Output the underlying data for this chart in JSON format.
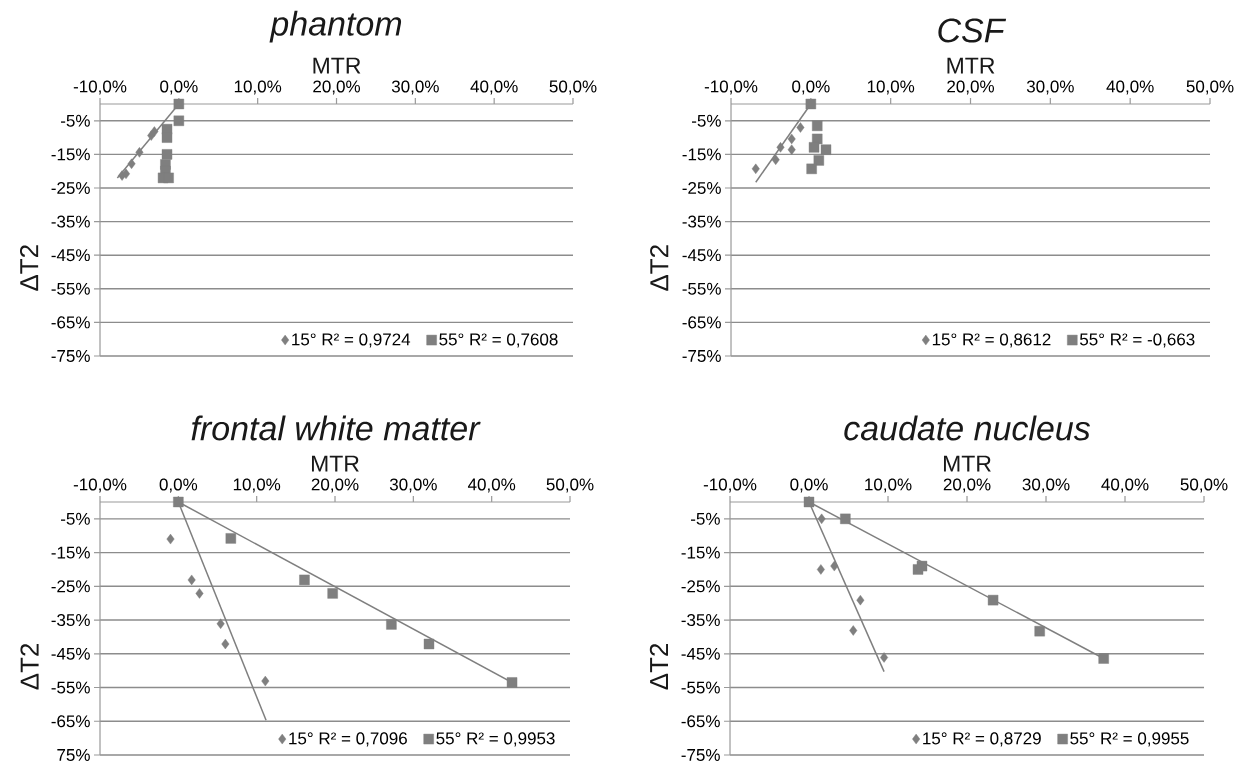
{
  "chart_data": [
    {
      "type": "scatter",
      "title": "phantom",
      "xlabel": "MTR",
      "ylabel": "ΔT2",
      "grid": "y",
      "legend": "bottom right",
      "xlim": [
        -10,
        50
      ],
      "ylim": [
        -75,
        0
      ],
      "xticks": [
        {
          "value": -10,
          "label": "-10,0%"
        },
        {
          "value": 0,
          "label": "0,0%"
        },
        {
          "value": 10,
          "label": "10,0%"
        },
        {
          "value": 20,
          "label": "20,0%"
        },
        {
          "value": 30,
          "label": "30,0%"
        },
        {
          "value": 40,
          "label": "40,0%"
        },
        {
          "value": 50,
          "label": "50,0%"
        }
      ],
      "yticks": [
        {
          "value": -5,
          "label": "-5%"
        },
        {
          "value": -15,
          "label": "-15%"
        },
        {
          "value": -25,
          "label": "-25%"
        },
        {
          "value": -35,
          "label": "-35%"
        },
        {
          "value": -45,
          "label": "-45%"
        },
        {
          "value": -55,
          "label": "-55%"
        },
        {
          "value": -65,
          "label": "-65%"
        },
        {
          "value": -75,
          "label": "-75%"
        }
      ],
      "series": [
        {
          "name": "15° R² = 0,9724",
          "color": "#7f7f7f",
          "marker": "diamond",
          "x": [
            -7.2,
            -6.7,
            -6.0,
            -5.0,
            -3.5,
            -3.1
          ],
          "values": [
            -21.3,
            -20.8,
            -17.8,
            -14.4,
            -9.4,
            -8.2
          ]
        },
        {
          "name": "55°  R² = 0,7608",
          "color": "#7f7f7f",
          "marker": "square",
          "x": [
            0,
            0,
            -1.5,
            -1.5,
            -1.5,
            -1.7,
            -1.7,
            -2.0,
            -1.3
          ],
          "values": [
            0,
            -5,
            -7.5,
            -10,
            -15,
            -18,
            -20,
            -22,
            -22
          ]
        },
        {
          "type": "line",
          "color": "#7f7f7f",
          "x": [
            -7.8,
            0
          ],
          "values": [
            -22,
            0
          ]
        }
      ]
    },
    {
      "type": "scatter",
      "title": "CSF",
      "xlabel": "MTR",
      "ylabel": "ΔT2",
      "grid": "y",
      "legend": "bottom right",
      "xlim": [
        -10,
        50
      ],
      "ylim": [
        -75,
        0
      ],
      "xticks": [
        {
          "value": -10,
          "label": "-10,0%"
        },
        {
          "value": 0,
          "label": "0,0%"
        },
        {
          "value": 10,
          "label": "10,0%"
        },
        {
          "value": 20,
          "label": "20,0%"
        },
        {
          "value": 30,
          "label": "30,0%"
        },
        {
          "value": 40,
          "label": "40,0%"
        },
        {
          "value": 50,
          "label": "50,0%"
        }
      ],
      "yticks": [
        {
          "value": -5,
          "label": "-5%"
        },
        {
          "value": -15,
          "label": "-15%"
        },
        {
          "value": -25,
          "label": "-25%"
        },
        {
          "value": -35,
          "label": "-35%"
        },
        {
          "value": -45,
          "label": "-45%"
        },
        {
          "value": -55,
          "label": "-55%"
        },
        {
          "value": -65,
          "label": "-65%"
        },
        {
          "value": -75,
          "label": "-75%"
        }
      ],
      "series": [
        {
          "name": "15°  R² = 0,8612",
          "color": "#7f7f7f",
          "marker": "diamond",
          "x": [
            -6.9,
            -4.4,
            -3.8,
            -2.4,
            -2.4,
            -1.3
          ],
          "values": [
            -19.3,
            -16.6,
            -12.9,
            -13.6,
            -10.4,
            -7.0
          ]
        },
        {
          "name": "55°  R² = -0,663",
          "color": "#7f7f7f",
          "marker": "square",
          "x": [
            0,
            0.8,
            0.8,
            0.4,
            1.9,
            1.0,
            0.1
          ],
          "values": [
            0,
            -6.5,
            -10.4,
            -12.9,
            -13.6,
            -16.8,
            -19.3
          ]
        },
        {
          "type": "line",
          "color": "#7f7f7f",
          "x": [
            -6.9,
            0
          ],
          "values": [
            -23.3,
            0
          ]
        }
      ]
    },
    {
      "type": "scatter",
      "title": "frontal white matter",
      "xlabel": "MTR",
      "ylabel": "ΔT2",
      "grid": "y",
      "legend": "bottom right",
      "xlim": [
        -10,
        50
      ],
      "ylim": [
        -75,
        0
      ],
      "xticks": [
        {
          "value": -10,
          "label": "-10,0%"
        },
        {
          "value": 0,
          "label": "0,0%"
        },
        {
          "value": 10,
          "label": "10,0%"
        },
        {
          "value": 20,
          "label": "20,0%"
        },
        {
          "value": 30,
          "label": "30,0%"
        },
        {
          "value": 40,
          "label": "40,0%"
        },
        {
          "value": 50,
          "label": "50,0%"
        }
      ],
      "yticks": [
        {
          "value": -5,
          "label": "-5%"
        },
        {
          "value": -15,
          "label": "-15%"
        },
        {
          "value": -25,
          "label": "-25%"
        },
        {
          "value": -35,
          "label": "-35%"
        },
        {
          "value": -45,
          "label": "-45%"
        },
        {
          "value": -55,
          "label": "-55%"
        },
        {
          "value": -65,
          "label": "-65%"
        },
        {
          "value": -75,
          "label": "75%"
        }
      ],
      "series": [
        {
          "name": "15°  R² = 0,7096",
          "color": "#7f7f7f",
          "marker": "diamond",
          "x": [
            -1.0,
            1.7,
            2.7,
            5.4,
            6.0,
            11.1
          ],
          "values": [
            -11.0,
            -23.1,
            -27.1,
            -36.1,
            -42.1,
            -53.1
          ]
        },
        {
          "name": "55°  R² = 0,9953",
          "color": "#7f7f7f",
          "marker": "square",
          "x": [
            0,
            6.7,
            16.1,
            19.7,
            27.2,
            32.0,
            42.6
          ],
          "values": [
            0,
            -10.8,
            -23.1,
            -27.1,
            -36.3,
            -42.1,
            -53.5
          ]
        },
        {
          "type": "line",
          "color": "#7f7f7f",
          "x": [
            0,
            11.2
          ],
          "values": [
            0,
            -64.7
          ]
        },
        {
          "type": "line",
          "color": "#7f7f7f",
          "x": [
            0,
            42.6
          ],
          "values": [
            0,
            -53.5
          ]
        }
      ]
    },
    {
      "type": "scatter",
      "title": "caudate nucleus",
      "xlabel": "MTR",
      "ylabel": "ΔT2",
      "grid": "y",
      "legend": "bottom right",
      "xlim": [
        -10,
        50
      ],
      "ylim": [
        -75,
        0
      ],
      "xticks": [
        {
          "value": -10,
          "label": "-10,0%"
        },
        {
          "value": 0,
          "label": "0,0%"
        },
        {
          "value": 10,
          "label": "10,0%"
        },
        {
          "value": 20,
          "label": "20,0%"
        },
        {
          "value": 30,
          "label": "30,0%"
        },
        {
          "value": 40,
          "label": "40,0%"
        },
        {
          "value": 50,
          "label": "50,0%"
        }
      ],
      "yticks": [
        {
          "value": -5,
          "label": "-5%"
        },
        {
          "value": -15,
          "label": "-15%"
        },
        {
          "value": -25,
          "label": "-25%"
        },
        {
          "value": -35,
          "label": "-35%"
        },
        {
          "value": -45,
          "label": "-45%"
        },
        {
          "value": -55,
          "label": "-55%"
        },
        {
          "value": -65,
          "label": "-65%"
        },
        {
          "value": -75,
          "label": "-75%"
        }
      ],
      "series": [
        {
          "name": "15°  R² = 0,8729",
          "color": "#7f7f7f",
          "marker": "diamond",
          "x": [
            1.6,
            1.5,
            3.2,
            6.5,
            5.6,
            9.5
          ],
          "values": [
            -5.0,
            -20.0,
            -19.0,
            -29.1,
            -38.1,
            -46.1
          ]
        },
        {
          "name": "55°  R² = 0,9955",
          "color": "#7f7f7f",
          "marker": "square",
          "x": [
            0,
            4.6,
            13.8,
            14.3,
            23.3,
            29.2,
            37.3
          ],
          "values": [
            0,
            -5.0,
            -20.0,
            -19.0,
            -29.1,
            -38.3,
            -46.4
          ]
        },
        {
          "type": "line",
          "color": "#7f7f7f",
          "x": [
            0,
            9.5
          ],
          "values": [
            0,
            -50.3
          ]
        },
        {
          "type": "line",
          "color": "#7f7f7f",
          "x": [
            0,
            37.3
          ],
          "values": [
            0,
            -46.4
          ]
        }
      ]
    }
  ]
}
